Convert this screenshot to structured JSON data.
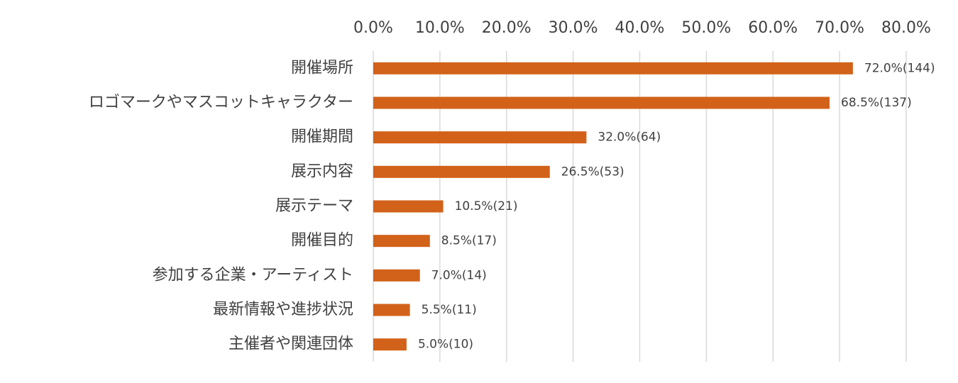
{
  "chart_data": {
    "type": "bar",
    "orientation": "horizontal",
    "categories": [
      "開催場所",
      "ロゴマークやマスコットキャラクター",
      "開催期間",
      "展示内容",
      "展示テーマ",
      "開催目的",
      "参加する企業・アーティスト",
      "最新情報や進捗状況",
      "主催者や関連団体"
    ],
    "values": [
      72.0,
      68.5,
      32.0,
      26.5,
      10.5,
      8.5,
      7.0,
      5.5,
      5.0
    ],
    "value_labels": [
      "72.0%(144)",
      "68.5%(137)",
      "32.0%(64)",
      "26.5%(53)",
      "10.5%(21)",
      "8.5%(17)",
      "7.0%(14)",
      "5.5%(11)",
      "5.0%(10)"
    ],
    "color": "#d2621a",
    "xlim": [
      0,
      80
    ],
    "xticks": [
      {
        "value": 0,
        "label": "0.0%"
      },
      {
        "value": 10,
        "label": "10.0%"
      },
      {
        "value": 20,
        "label": "20.0%"
      },
      {
        "value": 30,
        "label": "30.0%"
      },
      {
        "value": 40,
        "label": "40.0%"
      },
      {
        "value": 50,
        "label": "50.0%"
      },
      {
        "value": 60,
        "label": "60.0%"
      },
      {
        "value": 70,
        "label": "70.0%"
      },
      {
        "value": 80,
        "label": "80.0%"
      }
    ],
    "grid": true
  }
}
